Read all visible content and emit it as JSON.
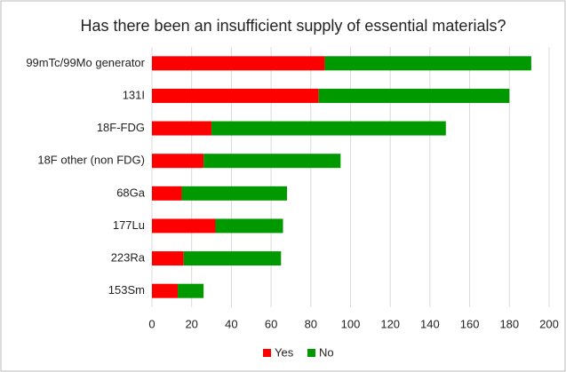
{
  "chart_data": {
    "type": "stacked-barh",
    "title": "Has there been an insufficient supply of essential materials?",
    "categories": [
      "99mTc/99Mo generator",
      "131I",
      "18F-FDG",
      "18F other (non FDG)",
      "68Ga",
      "177Lu",
      "223Ra",
      "153Sm"
    ],
    "series": [
      {
        "name": "Yes",
        "color": "#ff0000",
        "values": [
          87,
          84,
          30,
          26,
          15,
          32,
          16,
          13
        ]
      },
      {
        "name": "No",
        "color": "#009900",
        "values": [
          104,
          96,
          118,
          69,
          53,
          34,
          49,
          13
        ]
      }
    ],
    "xlim": [
      0,
      200
    ],
    "xticks": [
      0,
      20,
      40,
      60,
      80,
      100,
      120,
      140,
      160,
      180,
      200
    ],
    "grid": true,
    "legend": "bottom"
  }
}
